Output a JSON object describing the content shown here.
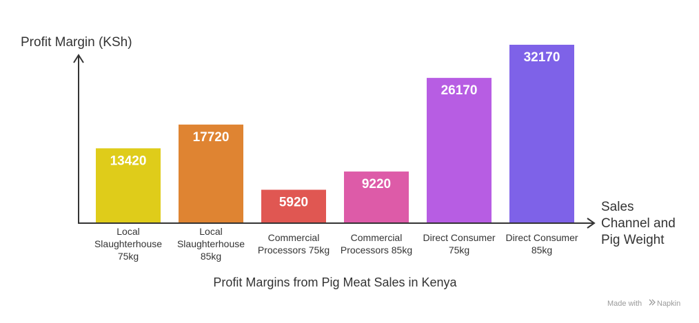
{
  "chart_data": {
    "type": "bar",
    "title": "Profit Margins from Pig Meat Sales in Kenya",
    "ylabel": "Profit Margin (KSh)",
    "xlabel": [
      "Sales",
      "Channel and",
      "Pig Weight"
    ],
    "ylim": [
      0,
      34000
    ],
    "categories": [
      [
        "Local",
        "Slaughterhouse",
        "75kg"
      ],
      [
        "Local",
        "Slaughterhouse",
        "85kg"
      ],
      [
        "Commercial",
        "Processors 75kg"
      ],
      [
        "Commercial",
        "Processors 85kg"
      ],
      [
        "Direct Consumer",
        "75kg"
      ],
      [
        "Direct Consumer",
        "85kg"
      ]
    ],
    "values": [
      13420,
      17720,
      5920,
      9220,
      26170,
      32170
    ],
    "colors": [
      "#dfcc1a",
      "#df8432",
      "#e05752",
      "#dd5ba8",
      "#b75de3",
      "#7e62e8"
    ],
    "grid": false,
    "legend": "none"
  },
  "watermark": {
    "prefix": "Made with",
    "brand": "Napkin"
  }
}
